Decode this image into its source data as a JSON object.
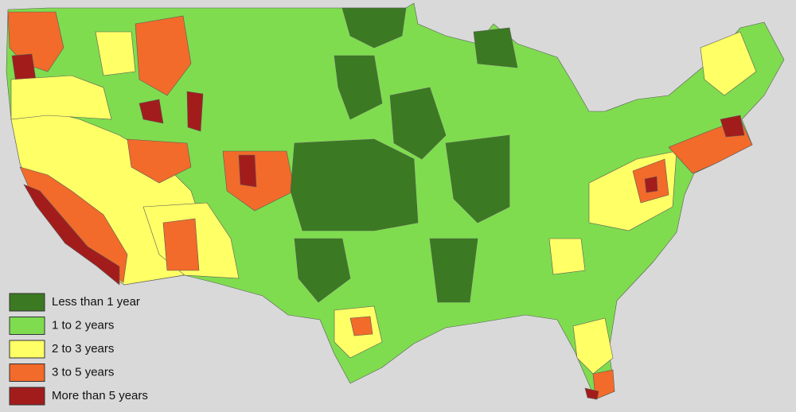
{
  "legend": {
    "items": [
      {
        "label": "Less than 1 year",
        "color": "#3b7a22"
      },
      {
        "label": "1 to 2 years",
        "color": "#7fdc4f"
      },
      {
        "label": "2 to 3 years",
        "color": "#ffff66"
      },
      {
        "label": "3 to 5 years",
        "color": "#f26b2a"
      },
      {
        "label": "More than 5 years",
        "color": "#a31c1c"
      }
    ]
  }
}
